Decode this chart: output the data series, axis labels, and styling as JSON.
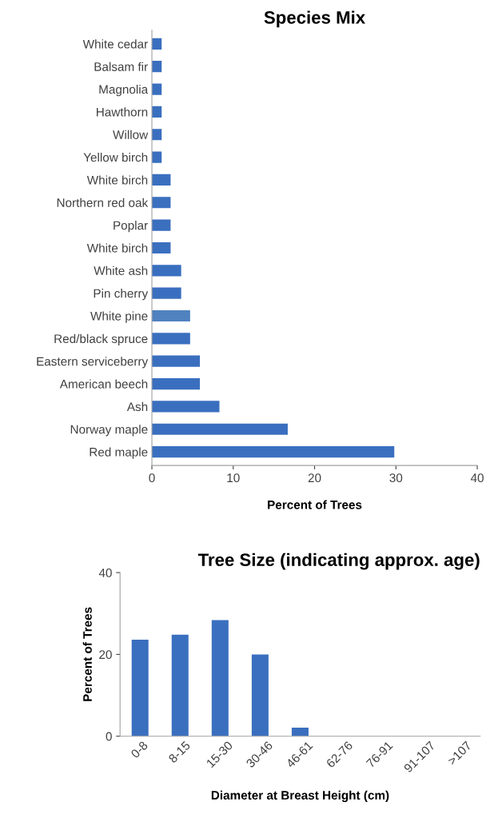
{
  "chart_data": [
    {
      "type": "bar",
      "orientation": "horizontal",
      "title": "Species Mix",
      "xlabel": "Percent of Trees",
      "categories": [
        "White cedar",
        "Balsam fir",
        "Magnolia",
        "Hawthorn",
        "Willow",
        "Yellow birch",
        "White birch",
        "Northern red oak",
        "Poplar",
        "White birch",
        "White ash",
        "Pin cherry",
        "White pine",
        "Red/black spruce",
        "Eastern serviceberry",
        "American beech",
        "Ash",
        "Norway maple",
        "Red maple"
      ],
      "values": [
        1.2,
        1.2,
        1.2,
        1.2,
        1.2,
        1.2,
        2.3,
        2.3,
        2.3,
        2.3,
        3.6,
        3.6,
        4.7,
        4.7,
        5.9,
        5.9,
        8.3,
        16.7,
        29.8
      ],
      "colors": [
        "#3a6fbf",
        "#3a6fbf",
        "#3a6fbf",
        "#3a6fbf",
        "#3a6fbf",
        "#3a6fbf",
        "#3a6fbf",
        "#3a6fbf",
        "#3a6fbf",
        "#3a6fbf",
        "#3a6fbf",
        "#3a6fbf",
        "#5082c0",
        "#3a6fbf",
        "#3a6fbf",
        "#3a6fbf",
        "#3a6fbf",
        "#3a6fbf",
        "#3a6fbf"
      ],
      "xlim": [
        0,
        40
      ],
      "xticks": [
        0,
        10,
        20,
        30,
        40
      ],
      "grid": false,
      "legend": false
    },
    {
      "type": "bar",
      "title": "Tree Size (indicating approx. age)",
      "xlabel": "Diameter at Breast Height (cm)",
      "ylabel": "Percent of Trees",
      "categories": [
        "0-8",
        "8-15",
        "15-30",
        "30-46",
        "46-61",
        "62-76",
        "76-91",
        "91-107",
        ">107"
      ],
      "values": [
        23.6,
        24.8,
        28.4,
        20.0,
        2.1,
        0,
        0,
        0,
        0
      ],
      "color": "#3a6fbf",
      "ylim": [
        0,
        40
      ],
      "yticks": [
        0,
        20,
        40
      ],
      "grid": false,
      "legend": false
    }
  ]
}
